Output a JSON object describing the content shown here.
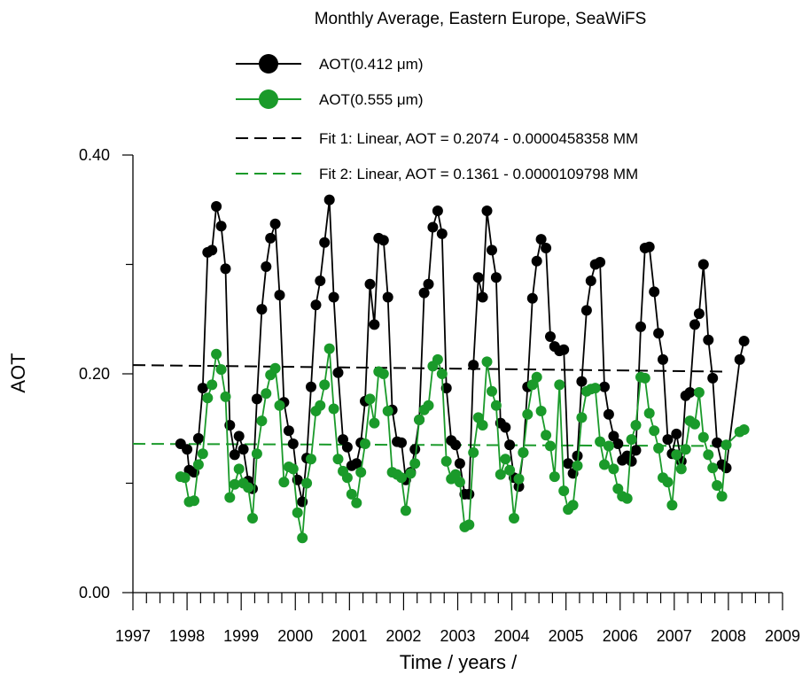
{
  "chart_data": {
    "type": "line",
    "title": "Monthly Average, Eastern Europe, SeaWiFS",
    "xlabel": "Time  / years /",
    "ylabel": "AOT",
    "xlim": [
      1997,
      2009
    ],
    "ylim": [
      0,
      0.4
    ],
    "x_ticks": [
      "1997",
      "1998",
      "1999",
      "2000",
      "2001",
      "2002",
      "2003",
      "2004",
      "2005",
      "2006",
      "2007",
      "2008",
      "2009"
    ],
    "y_ticks": [
      "0.00",
      "0.20",
      "0.40"
    ],
    "legend_position": "top",
    "series": [
      {
        "name": "AOT(0.412 μm)",
        "color": "#000000",
        "style": "line+marker",
        "points": [
          [
            1997.88,
            0.136
          ],
          [
            1998.0,
            0.131
          ],
          [
            1998.04,
            0.112
          ],
          [
            1998.13,
            0.11
          ],
          [
            1998.21,
            0.141
          ],
          [
            1998.29,
            0.187
          ],
          [
            1998.38,
            0.311
          ],
          [
            1998.46,
            0.313
          ],
          [
            1998.54,
            0.353
          ],
          [
            1998.63,
            0.335
          ],
          [
            1998.71,
            0.296
          ],
          [
            1998.79,
            0.153
          ],
          [
            1998.88,
            0.126
          ],
          [
            1998.96,
            0.143
          ],
          [
            1999.04,
            0.131
          ],
          [
            1999.13,
            0.102
          ],
          [
            1999.21,
            0.095
          ],
          [
            1999.29,
            0.177
          ],
          [
            1999.38,
            0.259
          ],
          [
            1999.46,
            0.298
          ],
          [
            1999.54,
            0.324
          ],
          [
            1999.63,
            0.337
          ],
          [
            1999.71,
            0.272
          ],
          [
            1999.79,
            0.174
          ],
          [
            1999.88,
            0.148
          ],
          [
            1999.96,
            0.136
          ],
          [
            2000.04,
            0.103
          ],
          [
            2000.13,
            0.083
          ],
          [
            2000.21,
            0.123
          ],
          [
            2000.29,
            0.188
          ],
          [
            2000.38,
            0.263
          ],
          [
            2000.46,
            0.285
          ],
          [
            2000.54,
            0.32
          ],
          [
            2000.63,
            0.359
          ],
          [
            2000.71,
            0.27
          ],
          [
            2000.79,
            0.201
          ],
          [
            2000.88,
            0.14
          ],
          [
            2000.96,
            0.133
          ],
          [
            2001.04,
            0.116
          ],
          [
            2001.13,
            0.118
          ],
          [
            2001.21,
            0.137
          ],
          [
            2001.29,
            0.175
          ],
          [
            2001.38,
            0.282
          ],
          [
            2001.46,
            0.245
          ],
          [
            2001.54,
            0.324
          ],
          [
            2001.63,
            0.322
          ],
          [
            2001.71,
            0.27
          ],
          [
            2001.79,
            0.167
          ],
          [
            2001.88,
            0.138
          ],
          [
            2001.96,
            0.137
          ],
          [
            2002.04,
            0.103
          ],
          [
            2002.13,
            0.11
          ],
          [
            2002.21,
            0.131
          ],
          [
            2002.29,
            0.158
          ],
          [
            2002.38,
            0.274
          ],
          [
            2002.46,
            0.282
          ],
          [
            2002.54,
            0.334
          ],
          [
            2002.63,
            0.349
          ],
          [
            2002.71,
            0.328
          ],
          [
            2002.79,
            0.187
          ],
          [
            2002.88,
            0.139
          ],
          [
            2002.96,
            0.135
          ],
          [
            2003.04,
            0.118
          ],
          [
            2003.13,
            0.09
          ],
          [
            2003.21,
            0.09
          ],
          [
            2003.29,
            0.208
          ],
          [
            2003.38,
            0.288
          ],
          [
            2003.46,
            0.27
          ],
          [
            2003.54,
            0.349
          ],
          [
            2003.63,
            0.313
          ],
          [
            2003.71,
            0.288
          ],
          [
            2003.79,
            0.155
          ],
          [
            2003.88,
            0.151
          ],
          [
            2003.96,
            0.135
          ],
          [
            2004.04,
            0.105
          ],
          [
            2004.13,
            0.097
          ],
          [
            2004.21,
            0.128
          ],
          [
            2004.29,
            0.188
          ],
          [
            2004.38,
            0.269
          ],
          [
            2004.46,
            0.303
          ],
          [
            2004.54,
            0.323
          ],
          [
            2004.63,
            0.315
          ],
          [
            2004.71,
            0.234
          ],
          [
            2004.79,
            0.225
          ],
          [
            2004.88,
            0.221
          ],
          [
            2004.96,
            0.222
          ],
          [
            2005.04,
            0.118
          ],
          [
            2005.13,
            0.109
          ],
          [
            2005.21,
            0.125
          ],
          [
            2005.29,
            0.193
          ],
          [
            2005.38,
            0.258
          ],
          [
            2005.46,
            0.285
          ],
          [
            2005.54,
            0.3
          ],
          [
            2005.63,
            0.302
          ],
          [
            2005.71,
            0.188
          ],
          [
            2005.79,
            0.163
          ],
          [
            2005.88,
            0.143
          ],
          [
            2005.96,
            0.136
          ],
          [
            2006.04,
            0.121
          ],
          [
            2006.13,
            0.125
          ],
          [
            2006.21,
            0.12
          ],
          [
            2006.29,
            0.13
          ],
          [
            2006.38,
            0.243
          ],
          [
            2006.46,
            0.315
          ],
          [
            2006.54,
            0.316
          ],
          [
            2006.63,
            0.275
          ],
          [
            2006.71,
            0.237
          ],
          [
            2006.79,
            0.213
          ],
          [
            2006.88,
            0.14
          ],
          [
            2006.96,
            0.127
          ],
          [
            2007.04,
            0.145
          ],
          [
            2007.13,
            0.12
          ],
          [
            2007.21,
            0.18
          ],
          [
            2007.29,
            0.183
          ],
          [
            2007.38,
            0.245
          ],
          [
            2007.46,
            0.255
          ],
          [
            2007.54,
            0.3
          ],
          [
            2007.63,
            0.231
          ],
          [
            2007.71,
            0.196
          ],
          [
            2007.79,
            0.137
          ],
          [
            2007.88,
            0.117
          ],
          [
            2007.96,
            0.114
          ],
          [
            2008.21,
            0.213
          ],
          [
            2008.29,
            0.23
          ]
        ]
      },
      {
        "name": "AOT(0.555 μm)",
        "color": "#1a9a2a",
        "style": "line+marker",
        "points": [
          [
            1997.88,
            0.106
          ],
          [
            1997.96,
            0.105
          ],
          [
            1998.04,
            0.083
          ],
          [
            1998.13,
            0.084
          ],
          [
            1998.21,
            0.117
          ],
          [
            1998.29,
            0.127
          ],
          [
            1998.38,
            0.178
          ],
          [
            1998.46,
            0.19
          ],
          [
            1998.54,
            0.218
          ],
          [
            1998.63,
            0.204
          ],
          [
            1998.71,
            0.179
          ],
          [
            1998.79,
            0.087
          ],
          [
            1998.88,
            0.099
          ],
          [
            1998.96,
            0.113
          ],
          [
            1999.04,
            0.1
          ],
          [
            1999.13,
            0.096
          ],
          [
            1999.21,
            0.068
          ],
          [
            1999.29,
            0.127
          ],
          [
            1999.38,
            0.157
          ],
          [
            1999.46,
            0.182
          ],
          [
            1999.54,
            0.199
          ],
          [
            1999.63,
            0.205
          ],
          [
            1999.71,
            0.171
          ],
          [
            1999.79,
            0.101
          ],
          [
            1999.88,
            0.115
          ],
          [
            1999.96,
            0.113
          ],
          [
            2000.04,
            0.073
          ],
          [
            2000.13,
            0.05
          ],
          [
            2000.21,
            0.1
          ],
          [
            2000.29,
            0.122
          ],
          [
            2000.38,
            0.166
          ],
          [
            2000.46,
            0.171
          ],
          [
            2000.54,
            0.19
          ],
          [
            2000.63,
            0.223
          ],
          [
            2000.71,
            0.168
          ],
          [
            2000.79,
            0.122
          ],
          [
            2000.88,
            0.111
          ],
          [
            2000.96,
            0.105
          ],
          [
            2001.04,
            0.09
          ],
          [
            2001.13,
            0.082
          ],
          [
            2001.21,
            0.11
          ],
          [
            2001.29,
            0.136
          ],
          [
            2001.38,
            0.177
          ],
          [
            2001.46,
            0.155
          ],
          [
            2001.54,
            0.202
          ],
          [
            2001.63,
            0.2
          ],
          [
            2001.71,
            0.166
          ],
          [
            2001.79,
            0.11
          ],
          [
            2001.88,
            0.108
          ],
          [
            2001.96,
            0.105
          ],
          [
            2002.04,
            0.075
          ],
          [
            2002.13,
            0.109
          ],
          [
            2002.21,
            0.118
          ],
          [
            2002.29,
            0.158
          ],
          [
            2002.38,
            0.167
          ],
          [
            2002.46,
            0.171
          ],
          [
            2002.54,
            0.207
          ],
          [
            2002.63,
            0.213
          ],
          [
            2002.71,
            0.2
          ],
          [
            2002.79,
            0.12
          ],
          [
            2002.88,
            0.104
          ],
          [
            2002.96,
            0.108
          ],
          [
            2003.04,
            0.101
          ],
          [
            2003.13,
            0.06
          ],
          [
            2003.21,
            0.062
          ],
          [
            2003.29,
            0.128
          ],
          [
            2003.38,
            0.16
          ],
          [
            2003.46,
            0.153
          ],
          [
            2003.54,
            0.211
          ],
          [
            2003.63,
            0.184
          ],
          [
            2003.71,
            0.171
          ],
          [
            2003.79,
            0.108
          ],
          [
            2003.88,
            0.122
          ],
          [
            2003.96,
            0.112
          ],
          [
            2004.04,
            0.068
          ],
          [
            2004.13,
            0.104
          ],
          [
            2004.21,
            0.128
          ],
          [
            2004.29,
            0.163
          ],
          [
            2004.38,
            0.19
          ],
          [
            2004.46,
            0.197
          ],
          [
            2004.54,
            0.166
          ],
          [
            2004.63,
            0.144
          ],
          [
            2004.71,
            0.134
          ],
          [
            2004.79,
            0.106
          ],
          [
            2004.88,
            0.19
          ],
          [
            2004.96,
            0.093
          ],
          [
            2005.04,
            0.076
          ],
          [
            2005.13,
            0.08
          ],
          [
            2005.21,
            0.116
          ],
          [
            2005.29,
            0.16
          ],
          [
            2005.38,
            0.184
          ],
          [
            2005.46,
            0.186
          ],
          [
            2005.54,
            0.187
          ],
          [
            2005.63,
            0.138
          ],
          [
            2005.71,
            0.117
          ],
          [
            2005.79,
            0.134
          ],
          [
            2005.88,
            0.113
          ],
          [
            2005.96,
            0.095
          ],
          [
            2006.04,
            0.088
          ],
          [
            2006.13,
            0.086
          ],
          [
            2006.21,
            0.14
          ],
          [
            2006.29,
            0.153
          ],
          [
            2006.38,
            0.197
          ],
          [
            2006.46,
            0.196
          ],
          [
            2006.54,
            0.164
          ],
          [
            2006.63,
            0.148
          ],
          [
            2006.71,
            0.132
          ],
          [
            2006.79,
            0.105
          ],
          [
            2006.88,
            0.101
          ],
          [
            2006.96,
            0.08
          ],
          [
            2007.04,
            0.126
          ],
          [
            2007.13,
            0.113
          ],
          [
            2007.21,
            0.131
          ],
          [
            2007.29,
            0.157
          ],
          [
            2007.38,
            0.154
          ],
          [
            2007.46,
            0.183
          ],
          [
            2007.54,
            0.142
          ],
          [
            2007.63,
            0.126
          ],
          [
            2007.71,
            0.114
          ],
          [
            2007.79,
            0.098
          ],
          [
            2007.88,
            0.088
          ],
          [
            2007.96,
            0.135
          ],
          [
            2008.21,
            0.147
          ],
          [
            2008.29,
            0.149
          ]
        ]
      }
    ],
    "fits": [
      {
        "name": "Fit 1:  Linear, AOT = 0.2074 - 0.0000458358 MM",
        "color": "#000000",
        "style": "dashed",
        "x": [
          1997,
          2008
        ],
        "y": [
          0.208,
          0.202
        ]
      },
      {
        "name": "Fit 2:  Linear, AOT = 0.1361 - 0.0000109798 MM",
        "color": "#1a9a2a",
        "style": "dashed",
        "x": [
          1997,
          2008
        ],
        "y": [
          0.136,
          0.134
        ]
      }
    ]
  }
}
